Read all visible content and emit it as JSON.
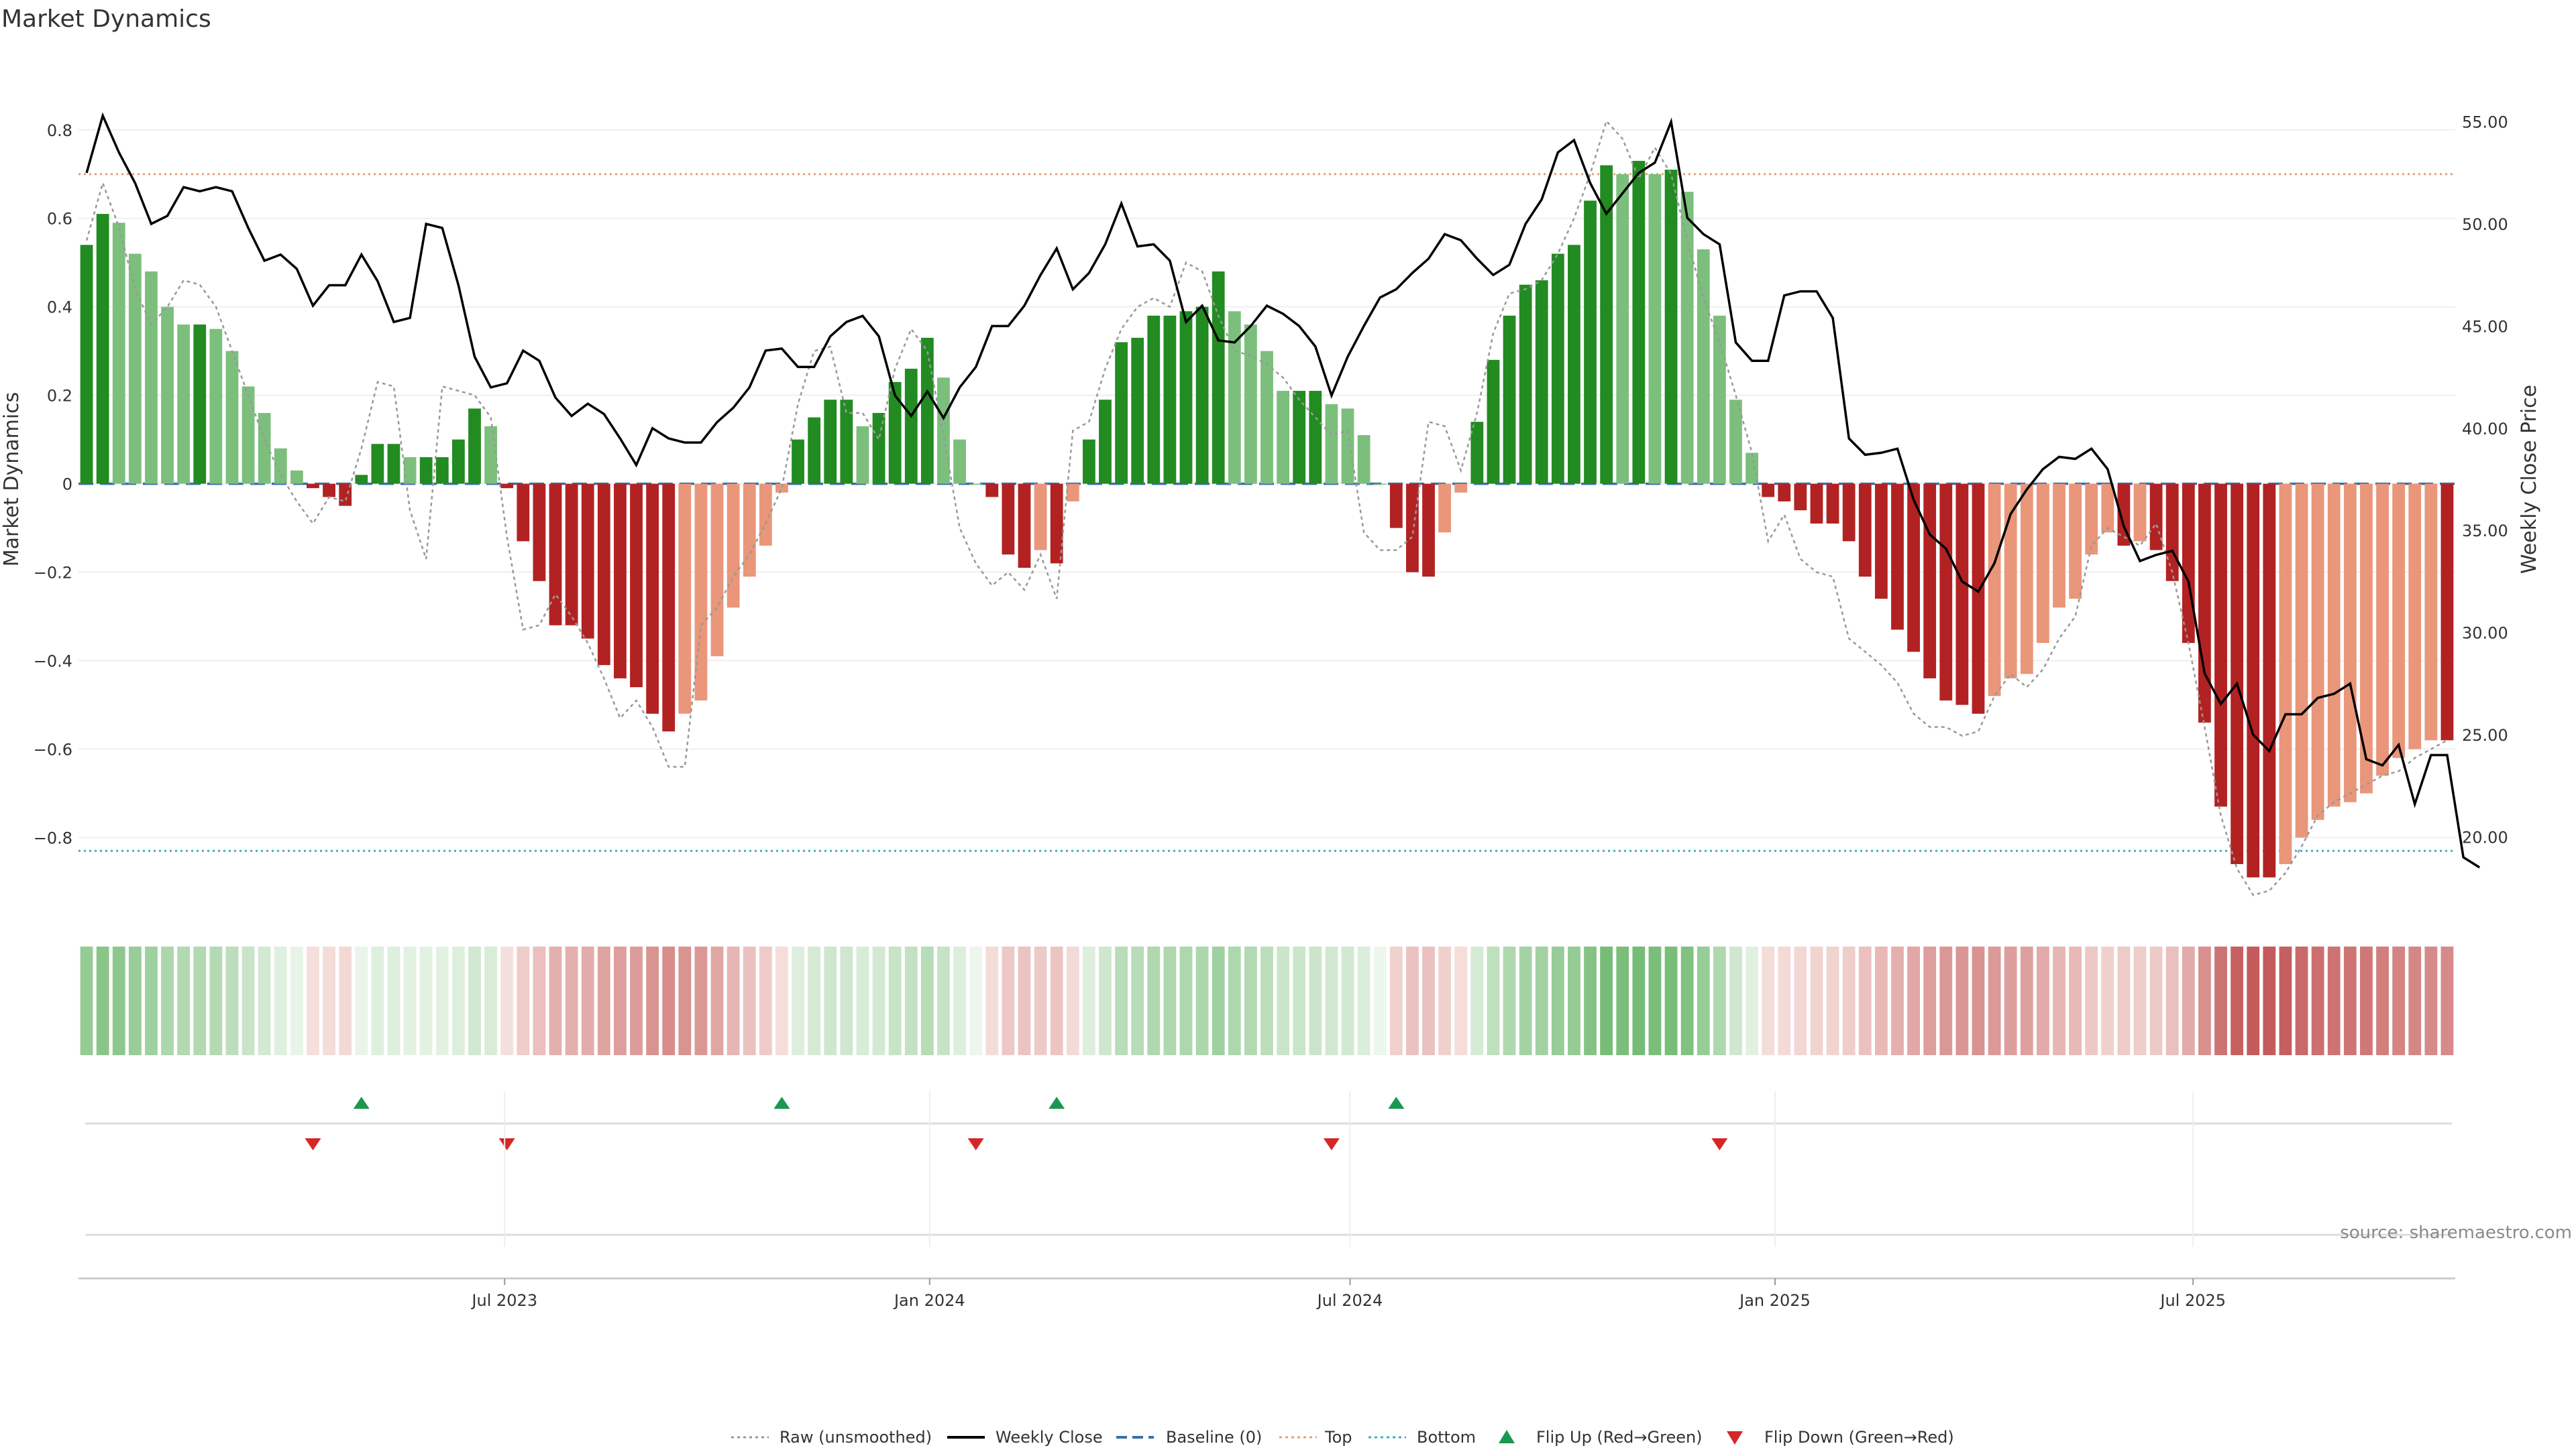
{
  "chart_data": {
    "type": "bar",
    "title": "Market Dynamics",
    "ylabel": "Market Dynamics",
    "y2label": "Weekly Close Price",
    "ylim": [
      -0.96,
      0.98
    ],
    "y2lim": [
      16.5,
      58.5
    ],
    "yticks": [
      "0.8",
      "0.6",
      "0.4",
      "0.2",
      "0",
      "−0.2",
      "−0.4",
      "−0.6",
      "−0.8"
    ],
    "ytick_values": [
      0.8,
      0.6,
      0.4,
      0.2,
      0,
      -0.2,
      -0.4,
      -0.6,
      -0.8
    ],
    "y2ticks": [
      "55.00",
      "50.00",
      "45.00",
      "40.00",
      "35.00",
      "30.00",
      "25.00",
      "20.00"
    ],
    "y2tick_values": [
      55,
      50,
      45,
      40,
      35,
      30,
      25,
      20
    ],
    "x_start": "2023-01-01",
    "week_step_days": 7,
    "xticks": [
      {
        "label": "Jul 2023",
        "date": "2023-07-01"
      },
      {
        "label": "Jan 2024",
        "date": "2024-01-01"
      },
      {
        "label": "Jul 2024",
        "date": "2024-07-01"
      },
      {
        "label": "Jan 2025",
        "date": "2025-01-01"
      },
      {
        "label": "Jul 2025",
        "date": "2025-07-01"
      }
    ],
    "top_line": 0.7,
    "bottom_line": -0.83,
    "baseline": 0,
    "grid": true,
    "legend_position": "bottom-center",
    "series": [
      {
        "name": "Market Dynamics",
        "values": [
          0.54,
          0.61,
          0.59,
          0.52,
          0.48,
          0.4,
          0.36,
          0.36,
          0.35,
          0.3,
          0.22,
          0.16,
          0.08,
          0.03,
          -0.01,
          -0.03,
          -0.05,
          0.02,
          0.09,
          0.09,
          0.06,
          0.06,
          0.06,
          0.1,
          0.17,
          0.13,
          -0.01,
          -0.13,
          -0.22,
          -0.32,
          -0.32,
          -0.35,
          -0.41,
          -0.44,
          -0.46,
          -0.52,
          -0.56,
          -0.52,
          -0.49,
          -0.39,
          -0.28,
          -0.21,
          -0.14,
          -0.02,
          0.1,
          0.15,
          0.19,
          0.19,
          0.13,
          0.16,
          0.23,
          0.26,
          0.33,
          0.24,
          0.1,
          0.0,
          -0.03,
          -0.16,
          -0.19,
          -0.15,
          -0.18,
          -0.04,
          0.1,
          0.19,
          0.32,
          0.33,
          0.38,
          0.38,
          0.39,
          0.4,
          0.48,
          0.39,
          0.36,
          0.3,
          0.21,
          0.21,
          0.21,
          0.18,
          0.17,
          0.11,
          0.0,
          -0.1,
          -0.2,
          -0.21,
          -0.11,
          -0.02,
          0.14,
          0.28,
          0.38,
          0.45,
          0.46,
          0.52,
          0.54,
          0.64,
          0.72,
          0.7,
          0.73,
          0.7,
          0.71,
          0.66,
          0.53,
          0.38,
          0.19,
          0.07,
          -0.03,
          -0.04,
          -0.06,
          -0.09,
          -0.09,
          -0.13,
          -0.21,
          -0.26,
          -0.33,
          -0.38,
          -0.44,
          -0.49,
          -0.5,
          -0.52,
          -0.48,
          -0.44,
          -0.43,
          -0.36,
          -0.28,
          -0.26,
          -0.16,
          -0.11,
          -0.14,
          -0.13,
          -0.15,
          -0.22,
          -0.36,
          -0.54,
          -0.73,
          -0.86,
          -0.89,
          -0.89,
          -0.86,
          -0.8,
          -0.76,
          -0.73,
          -0.72,
          -0.7,
          -0.66,
          -0.62,
          -0.6,
          -0.58,
          -0.58
        ]
      },
      {
        "name": "Raw (unsmoothed)",
        "values": [
          0.55,
          0.68,
          0.58,
          0.44,
          0.36,
          0.4,
          0.46,
          0.45,
          0.4,
          0.3,
          0.2,
          0.1,
          0.02,
          -0.04,
          -0.09,
          -0.03,
          -0.04,
          0.08,
          0.23,
          0.22,
          -0.06,
          -0.17,
          0.22,
          0.21,
          0.2,
          0.15,
          -0.12,
          -0.33,
          -0.32,
          -0.25,
          -0.3,
          -0.36,
          -0.44,
          -0.53,
          -0.49,
          -0.55,
          -0.64,
          -0.64,
          -0.32,
          -0.28,
          -0.21,
          -0.16,
          -0.09,
          -0.01,
          0.18,
          0.3,
          0.31,
          0.16,
          0.16,
          0.1,
          0.26,
          0.35,
          0.3,
          0.11,
          -0.1,
          -0.18,
          -0.23,
          -0.2,
          -0.24,
          -0.16,
          -0.26,
          0.12,
          0.14,
          0.26,
          0.35,
          0.4,
          0.42,
          0.4,
          0.5,
          0.48,
          0.38,
          0.3,
          0.29,
          0.27,
          0.24,
          0.19,
          0.15,
          0.11,
          0.12,
          -0.11,
          -0.15,
          -0.15,
          -0.12,
          0.14,
          0.13,
          0.03,
          0.16,
          0.34,
          0.43,
          0.44,
          0.46,
          0.52,
          0.6,
          0.7,
          0.82,
          0.78,
          0.69,
          0.76,
          0.7,
          0.55,
          0.42,
          0.32,
          0.2,
          0.07,
          -0.13,
          -0.07,
          -0.17,
          -0.2,
          -0.21,
          -0.35,
          -0.38,
          -0.41,
          -0.45,
          -0.52,
          -0.55,
          -0.55,
          -0.57,
          -0.56,
          -0.48,
          -0.43,
          -0.46,
          -0.42,
          -0.35,
          -0.3,
          -0.14,
          -0.1,
          -0.12,
          -0.14,
          -0.09,
          -0.2,
          -0.36,
          -0.55,
          -0.75,
          -0.87,
          -0.93,
          -0.92,
          -0.88,
          -0.82,
          -0.75,
          -0.72,
          -0.7,
          -0.68,
          -0.66,
          -0.65,
          -0.62,
          -0.6,
          -0.58
        ]
      },
      {
        "name": "Weekly Close",
        "values": [
          52.5,
          55.3,
          53.5,
          52.0,
          50.0,
          50.4,
          51.8,
          51.6,
          51.8,
          51.6,
          49.8,
          48.2,
          48.5,
          47.8,
          46.0,
          47.0,
          47.0,
          48.5,
          47.2,
          45.2,
          45.4,
          50.0,
          49.8,
          47.0,
          43.5,
          42.0,
          42.2,
          43.8,
          43.3,
          41.5,
          40.6,
          41.2,
          40.7,
          39.5,
          38.2,
          40.0,
          39.5,
          39.3,
          39.3,
          40.3,
          41.0,
          42.0,
          43.8,
          43.9,
          43.0,
          43.0,
          44.5,
          45.2,
          45.5,
          44.5,
          41.6,
          40.6,
          41.8,
          40.5,
          42.0,
          43.0,
          45.0,
          45.0,
          46.0,
          47.5,
          48.8,
          46.8,
          47.6,
          49.0,
          51.0,
          48.9,
          49.0,
          48.2,
          45.2,
          46.0,
          44.3,
          44.2,
          45.0,
          46.0,
          45.6,
          45.0,
          44.0,
          41.6,
          43.5,
          45.0,
          46.4,
          46.8,
          47.6,
          48.3,
          49.5,
          49.2,
          48.3,
          47.5,
          48.0,
          50.0,
          51.2,
          53.5,
          54.1,
          52.0,
          50.5,
          51.5,
          52.5,
          53.0,
          55.0,
          50.3,
          49.5,
          49.0,
          44.2,
          43.3,
          43.3,
          46.5,
          46.7,
          46.7,
          45.4,
          39.5,
          38.7,
          38.8,
          39.0,
          36.5,
          34.8,
          34.1,
          32.5,
          32.0,
          33.4,
          35.8,
          37.0,
          38.0,
          38.6,
          38.5,
          39.0,
          38.0,
          35.2,
          33.5,
          33.8,
          34.0,
          32.5,
          28.0,
          26.5,
          27.5,
          25.0,
          24.2,
          26.0,
          26.0,
          26.8,
          27.0,
          27.5,
          23.8,
          23.5,
          24.5,
          21.6,
          24.0,
          24.0,
          19.0,
          18.5
        ]
      }
    ],
    "legend": [
      {
        "label": "Raw (unsmoothed)",
        "kind": "dotted-line",
        "color": "#999999"
      },
      {
        "label": "Weekly Close",
        "kind": "line",
        "color": "#000000"
      },
      {
        "label": "Baseline (0)",
        "kind": "dashed-line",
        "color": "#3a6fa5"
      },
      {
        "label": "Top",
        "kind": "dotted-line",
        "color": "#e8a070"
      },
      {
        "label": "Bottom",
        "kind": "dotted-line",
        "color": "#3ab0c0"
      },
      {
        "label": "Flip Up (Red→Green)",
        "kind": "triangle-up",
        "color": "#1a9850"
      },
      {
        "label": "Flip Down (Green→Red)",
        "kind": "triangle-down",
        "color": "#d62728"
      }
    ],
    "flip_up_weeks": [
      17,
      43,
      60,
      81
    ],
    "flip_down_weeks": [
      14,
      26,
      55,
      77,
      101
    ],
    "colors": {
      "green_strong": "#228b22",
      "green_weak": "#7cbf7c",
      "red_strong": "#b22222",
      "red_weak": "#e9967a",
      "raw": "#999999",
      "close": "#000000",
      "baseline": "#3a6fa5",
      "top": "#e8a070",
      "bottom": "#3ab0c0",
      "flip_up": "#1a9850",
      "flip_down": "#d62728"
    }
  },
  "source": "source: sharemaestro.com"
}
